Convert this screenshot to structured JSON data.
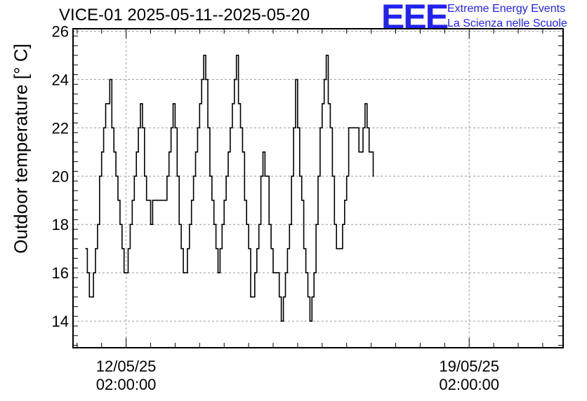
{
  "chart_data": {
    "type": "line",
    "title": "VICE-01 2025-05-11--2025-05-20",
    "xlabel": "",
    "ylabel": "Outdoor temperature [° C]",
    "ylim": [
      12.9,
      26.1
    ],
    "y_ticks": [
      14,
      16,
      18,
      20,
      22,
      24,
      26
    ],
    "x_ticks": [
      {
        "date": "12/05/25",
        "time": "02:00:00"
      },
      {
        "date": "19/05/25",
        "time": "02:00:00"
      }
    ],
    "grid": true,
    "color": "#000000",
    "series": [
      {
        "name": "",
        "points": [
          [
            "2025-05-11T06:00",
            17
          ],
          [
            "2025-05-11T07:00",
            16
          ],
          [
            "2025-05-11T08:00",
            15
          ],
          [
            "2025-05-11T10:00",
            16
          ],
          [
            "2025-05-11T11:00",
            17
          ],
          [
            "2025-05-11T12:00",
            18
          ],
          [
            "2025-05-11T13:00",
            20
          ],
          [
            "2025-05-11T14:00",
            21
          ],
          [
            "2025-05-11T15:00",
            22
          ],
          [
            "2025-05-11T16:00",
            23
          ],
          [
            "2025-05-11T18:00",
            24
          ],
          [
            "2025-05-11T19:00",
            22
          ],
          [
            "2025-05-11T20:00",
            21
          ],
          [
            "2025-05-11T21:00",
            20
          ],
          [
            "2025-05-11T22:00",
            19
          ],
          [
            "2025-05-11T23:00",
            18
          ],
          [
            "2025-05-12T00:00",
            17
          ],
          [
            "2025-05-12T01:00",
            16
          ],
          [
            "2025-05-12T03:00",
            17
          ],
          [
            "2025-05-12T04:00",
            18
          ],
          [
            "2025-05-12T05:00",
            19
          ],
          [
            "2025-05-12T06:00",
            20
          ],
          [
            "2025-05-12T07:00",
            21
          ],
          [
            "2025-05-12T08:00",
            22
          ],
          [
            "2025-05-12T09:00",
            23
          ],
          [
            "2025-05-12T10:00",
            22
          ],
          [
            "2025-05-12T11:00",
            20
          ],
          [
            "2025-05-12T12:00",
            19
          ],
          [
            "2025-05-12T14:00",
            18
          ],
          [
            "2025-05-12T15:00",
            19
          ],
          [
            "2025-05-12T22:00",
            20
          ],
          [
            "2025-05-12T23:00",
            21
          ],
          [
            "2025-05-13T00:00",
            22
          ],
          [
            "2025-05-13T01:00",
            23
          ],
          [
            "2025-05-13T02:00",
            22
          ],
          [
            "2025-05-13T03:00",
            20
          ],
          [
            "2025-05-13T04:00",
            18
          ],
          [
            "2025-05-13T05:00",
            17
          ],
          [
            "2025-05-13T06:00",
            16
          ],
          [
            "2025-05-13T08:00",
            17
          ],
          [
            "2025-05-13T09:00",
            18
          ],
          [
            "2025-05-13T10:00",
            19
          ],
          [
            "2025-05-13T11:00",
            20
          ],
          [
            "2025-05-13T12:00",
            21
          ],
          [
            "2025-05-13T13:00",
            22
          ],
          [
            "2025-05-13T14:00",
            23
          ],
          [
            "2025-05-13T15:00",
            24
          ],
          [
            "2025-05-13T16:00",
            25
          ],
          [
            "2025-05-13T17:00",
            24
          ],
          [
            "2025-05-13T18:00",
            22
          ],
          [
            "2025-05-13T19:00",
            20
          ],
          [
            "2025-05-13T20:00",
            19
          ],
          [
            "2025-05-13T21:00",
            18
          ],
          [
            "2025-05-13T22:00",
            17
          ],
          [
            "2025-05-13T23:00",
            16
          ],
          [
            "2025-05-14T00:00",
            17
          ],
          [
            "2025-05-14T01:00",
            18
          ],
          [
            "2025-05-14T02:00",
            19
          ],
          [
            "2025-05-14T03:00",
            20
          ],
          [
            "2025-05-14T04:00",
            21
          ],
          [
            "2025-05-14T05:00",
            22
          ],
          [
            "2025-05-14T06:00",
            23
          ],
          [
            "2025-05-14T07:00",
            24
          ],
          [
            "2025-05-14T08:00",
            25
          ],
          [
            "2025-05-14T09:00",
            23
          ],
          [
            "2025-05-14T10:00",
            22
          ],
          [
            "2025-05-14T11:00",
            21
          ],
          [
            "2025-05-14T12:00",
            19
          ],
          [
            "2025-05-14T13:00",
            18
          ],
          [
            "2025-05-14T14:00",
            17
          ],
          [
            "2025-05-14T15:00",
            15
          ],
          [
            "2025-05-14T17:00",
            16
          ],
          [
            "2025-05-14T18:00",
            17
          ],
          [
            "2025-05-14T19:00",
            18
          ],
          [
            "2025-05-14T20:00",
            20
          ],
          [
            "2025-05-14T21:00",
            21
          ],
          [
            "2025-05-14T22:00",
            20
          ],
          [
            "2025-05-15T00:00",
            18
          ],
          [
            "2025-05-15T01:00",
            17
          ],
          [
            "2025-05-15T02:00",
            16
          ],
          [
            "2025-05-15T05:00",
            15
          ],
          [
            "2025-05-15T06:00",
            14
          ],
          [
            "2025-05-15T07:00",
            15
          ],
          [
            "2025-05-15T08:00",
            16
          ],
          [
            "2025-05-15T09:00",
            17
          ],
          [
            "2025-05-15T10:00",
            18
          ],
          [
            "2025-05-15T11:00",
            20
          ],
          [
            "2025-05-15T12:00",
            22
          ],
          [
            "2025-05-15T13:00",
            24
          ],
          [
            "2025-05-15T14:00",
            22
          ],
          [
            "2025-05-15T15:00",
            20
          ],
          [
            "2025-05-15T16:00",
            19
          ],
          [
            "2025-05-15T17:00",
            17
          ],
          [
            "2025-05-15T18:00",
            16
          ],
          [
            "2025-05-15T19:00",
            15
          ],
          [
            "2025-05-15T20:00",
            14
          ],
          [
            "2025-05-15T21:00",
            15
          ],
          [
            "2025-05-15T22:00",
            16
          ],
          [
            "2025-05-15T23:00",
            18
          ],
          [
            "2025-05-16T00:00",
            20
          ],
          [
            "2025-05-16T01:00",
            22
          ],
          [
            "2025-05-16T02:00",
            23
          ],
          [
            "2025-05-16T03:00",
            24
          ],
          [
            "2025-05-16T04:00",
            25
          ],
          [
            "2025-05-16T05:00",
            23
          ],
          [
            "2025-05-16T06:00",
            22
          ],
          [
            "2025-05-16T07:00",
            20
          ],
          [
            "2025-05-16T08:00",
            18
          ],
          [
            "2025-05-16T09:00",
            17
          ],
          [
            "2025-05-16T11:00",
            17
          ],
          [
            "2025-05-16T12:00",
            18
          ],
          [
            "2025-05-16T13:00",
            19
          ],
          [
            "2025-05-16T14:00",
            20
          ],
          [
            "2025-05-16T15:00",
            22
          ],
          [
            "2025-05-16T20:00",
            21
          ],
          [
            "2025-05-16T22:00",
            22
          ],
          [
            "2025-05-16T23:00",
            23
          ],
          [
            "2025-05-17T00:00",
            22
          ],
          [
            "2025-05-17T01:00",
            21
          ],
          [
            "2025-05-17T03:00",
            20
          ]
        ]
      }
    ]
  }
}
